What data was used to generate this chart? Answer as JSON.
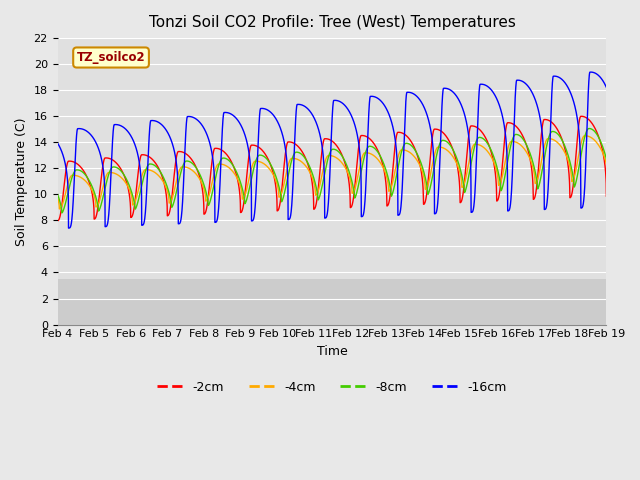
{
  "title": "Tonzi Soil CO2 Profile: Tree (West) Temperatures",
  "xlabel": "Time",
  "ylabel": "Soil Temperature (C)",
  "ylim": [
    0,
    22
  ],
  "background_color": "#e8e8e8",
  "plot_bg_color": "#e8e8e8",
  "upper_bg_color": "#e0e0e0",
  "lower_bg_color": "#cccccc",
  "grid_color": "white",
  "line_colors": [
    "red",
    "#ffaa00",
    "#44cc00",
    "blue"
  ],
  "line_labels": [
    "-2cm",
    "-4cm",
    "-8cm",
    "-16cm"
  ],
  "label_box_text": "TZ_soilco2",
  "label_box_facecolor": "#ffffcc",
  "label_box_edgecolor": "#cc8800",
  "label_box_textcolor": "#990000",
  "x_tick_labels": [
    "Feb 4",
    "Feb 5",
    "Feb 6",
    "Feb 7",
    "Feb 8",
    "Feb 9",
    "Feb 10",
    "Feb 11",
    "Feb 12",
    "Feb 13",
    "Feb 14",
    "Feb 15",
    "Feb 16",
    "Feb 17",
    "Feb 18",
    "Feb 19"
  ],
  "title_fontsize": 11,
  "tick_fontsize": 8
}
